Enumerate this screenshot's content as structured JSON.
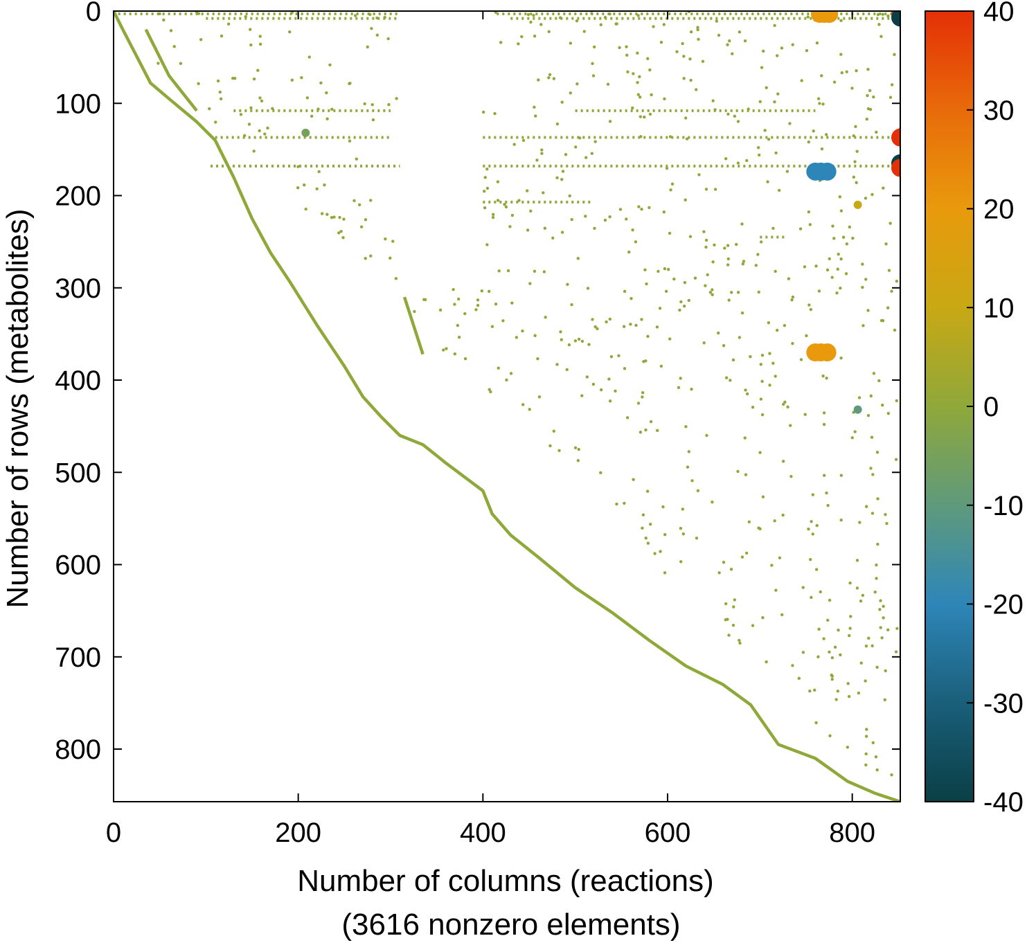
{
  "chart_data": {
    "type": "scatter",
    "title": "",
    "xlabel": "Number of columns (reactions)",
    "xlabel_line2": "(3616 nonzero elements)",
    "ylabel": "Number of rows (metabolites)",
    "xlim": [
      0,
      852
    ],
    "ylim": [
      857,
      0
    ],
    "x_ticks": [
      0,
      200,
      400,
      600,
      800
    ],
    "y_ticks": [
      0,
      100,
      200,
      300,
      400,
      500,
      600,
      700,
      800
    ],
    "grid": false,
    "colorbar": {
      "range": [
        -40,
        40
      ],
      "ticks": [
        40,
        30,
        20,
        10,
        0,
        -10,
        -20,
        -30,
        -40
      ],
      "colors": [
        {
          "value": -40,
          "color": "#0a3f45"
        },
        {
          "value": -30,
          "color": "#1a5f7a"
        },
        {
          "value": -20,
          "color": "#2e86b8"
        },
        {
          "value": -10,
          "color": "#5f9a7c"
        },
        {
          "value": 0,
          "color": "#8fa83a"
        },
        {
          "value": 10,
          "color": "#c8a814"
        },
        {
          "value": 20,
          "color": "#e89a0c"
        },
        {
          "value": 30,
          "color": "#e86b0a"
        },
        {
          "value": 40,
          "color": "#e43006"
        }
      ]
    },
    "diagonal": [
      [
        0,
        0
      ],
      [
        10,
        20
      ],
      [
        40,
        78
      ],
      [
        60,
        95
      ],
      [
        90,
        120
      ],
      [
        110,
        140
      ],
      [
        130,
        180
      ],
      [
        150,
        225
      ],
      [
        170,
        262
      ],
      [
        190,
        292
      ],
      [
        220,
        340
      ],
      [
        250,
        385
      ],
      [
        270,
        418
      ],
      [
        290,
        440
      ],
      [
        310,
        460
      ],
      [
        335,
        470
      ],
      [
        360,
        490
      ],
      [
        400,
        520
      ],
      [
        410,
        545
      ],
      [
        430,
        568
      ],
      [
        460,
        592
      ],
      [
        500,
        625
      ],
      [
        540,
        652
      ],
      [
        580,
        682
      ],
      [
        620,
        710
      ],
      [
        660,
        730
      ],
      [
        690,
        752
      ],
      [
        720,
        795
      ],
      [
        760,
        810
      ],
      [
        795,
        835
      ],
      [
        825,
        848
      ],
      [
        852,
        857
      ]
    ],
    "branch": [
      [
        35,
        20
      ],
      [
        60,
        70
      ],
      [
        90,
        108
      ]
    ],
    "side_diag": [
      [
        315,
        310
      ],
      [
        335,
        372
      ]
    ],
    "row_bands": [
      {
        "row": 3,
        "x_start": 5,
        "x_end": 310
      },
      {
        "row": 3,
        "x_start": 415,
        "x_end": 852
      },
      {
        "row": 8,
        "x_start": 100,
        "x_end": 310
      },
      {
        "row": 8,
        "x_start": 430,
        "x_end": 852
      },
      {
        "row": 108,
        "x_start": 130,
        "x_end": 300
      },
      {
        "row": 108,
        "x_start": 500,
        "x_end": 760
      },
      {
        "row": 137,
        "x_start": 110,
        "x_end": 300
      },
      {
        "row": 137,
        "x_start": 400,
        "x_end": 852
      },
      {
        "row": 168,
        "x_start": 105,
        "x_end": 310
      },
      {
        "row": 168,
        "x_start": 400,
        "x_end": 852
      },
      {
        "row": 207,
        "x_start": 400,
        "x_end": 520
      },
      {
        "row": 245,
        "x_start": 700,
        "x_end": 730
      }
    ],
    "highlighted_points": [
      {
        "x": 765,
        "y": 3,
        "value": 20
      },
      {
        "x": 770,
        "y": 3,
        "value": 20
      },
      {
        "x": 775,
        "y": 3,
        "value": 20
      },
      {
        "x": 852,
        "y": 3,
        "value": 40
      },
      {
        "x": 852,
        "y": 7,
        "value": -40
      },
      {
        "x": 852,
        "y": 137,
        "value": 40
      },
      {
        "x": 852,
        "y": 165,
        "value": -40
      },
      {
        "x": 852,
        "y": 170,
        "value": 40
      },
      {
        "x": 760,
        "y": 174,
        "value": -20
      },
      {
        "x": 766,
        "y": 174,
        "value": -20
      },
      {
        "x": 773,
        "y": 174,
        "value": -20
      },
      {
        "x": 760,
        "y": 370,
        "value": 20
      },
      {
        "x": 766,
        "y": 370,
        "value": 20
      },
      {
        "x": 773,
        "y": 370,
        "value": 20
      },
      {
        "x": 806,
        "y": 432,
        "value": -10
      },
      {
        "x": 806,
        "y": 210,
        "value": 10
      },
      {
        "x": 208,
        "y": 132,
        "value": -5
      }
    ]
  }
}
